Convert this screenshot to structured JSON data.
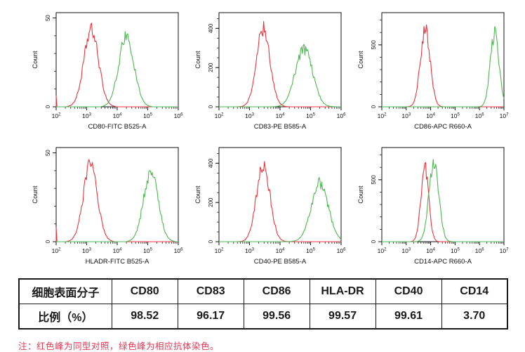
{
  "page": {
    "background": "#ffffff"
  },
  "legend_colors": {
    "isotype_red": "#e8353d",
    "antibody_green": "#4db84f"
  },
  "chart_data": [
    {
      "type": "histogram",
      "marker": "CD80",
      "xlabel": "CD80-FITC B525-A",
      "ylabel": "Count",
      "x_log_range": [
        2,
        6
      ],
      "y_max": 53,
      "y_major_ticks": [
        0,
        50
      ],
      "y_minor_step": 10,
      "series": [
        {
          "name": "isotype-control",
          "color": "#e8353d",
          "peak_log10": 3.15,
          "sigma_log10": 0.24,
          "peak_count": 43,
          "edge_spike_count": 6
        },
        {
          "name": "antibody-stain",
          "color": "#4db84f",
          "peak_log10": 4.3,
          "sigma_log10": 0.25,
          "peak_count": 40
        }
      ]
    },
    {
      "type": "histogram",
      "marker": "CD83",
      "xlabel": "CD83-PE B585-A",
      "ylabel": "Count",
      "x_log_range": [
        2,
        6
      ],
      "y_max": 480,
      "y_major_ticks": [
        0,
        200,
        400
      ],
      "y_minor_step": 50,
      "series": [
        {
          "name": "isotype-control",
          "color": "#e8353d",
          "peak_log10": 3.45,
          "sigma_log10": 0.22,
          "peak_count": 400
        },
        {
          "name": "antibody-stain",
          "color": "#4db84f",
          "peak_log10": 4.78,
          "sigma_log10": 0.28,
          "peak_count": 295
        }
      ]
    },
    {
      "type": "histogram",
      "marker": "CD86",
      "xlabel": "CD86-APC R660-A",
      "ylabel": "Count",
      "x_log_range": [
        2,
        7
      ],
      "y_max": 760,
      "y_major_ticks": [
        0,
        500
      ],
      "y_minor_step": 100,
      "series": [
        {
          "name": "isotype-control",
          "color": "#e8353d",
          "peak_log10": 3.78,
          "sigma_log10": 0.2,
          "peak_count": 620
        },
        {
          "name": "antibody-stain",
          "color": "#4db84f",
          "peak_log10": 6.62,
          "sigma_log10": 0.18,
          "peak_count": 590
        }
      ]
    },
    {
      "type": "histogram",
      "marker": "HLA-DR",
      "xlabel": "HLADR-FITC B525-A",
      "ylabel": "Count",
      "x_log_range": [
        2,
        6
      ],
      "y_max": 53,
      "y_major_ticks": [
        0,
        50
      ],
      "y_minor_step": 10,
      "series": [
        {
          "name": "isotype-control",
          "color": "#e8353d",
          "peak_log10": 3.12,
          "sigma_log10": 0.23,
          "peak_count": 43,
          "edge_spike_count": 8
        },
        {
          "name": "antibody-stain",
          "color": "#4db84f",
          "peak_log10": 5.1,
          "sigma_log10": 0.24,
          "peak_count": 39
        }
      ]
    },
    {
      "type": "histogram",
      "marker": "CD40",
      "xlabel": "CD40-PE B585-A",
      "ylabel": "Count",
      "x_log_range": [
        2,
        6
      ],
      "y_max": 480,
      "y_major_ticks": [
        0,
        200,
        400
      ],
      "y_minor_step": 50,
      "series": [
        {
          "name": "isotype-control",
          "color": "#e8353d",
          "peak_log10": 3.45,
          "sigma_log10": 0.22,
          "peak_count": 395
        },
        {
          "name": "antibody-stain",
          "color": "#4db84f",
          "peak_log10": 5.3,
          "sigma_log10": 0.28,
          "peak_count": 300
        }
      ]
    },
    {
      "type": "histogram",
      "marker": "CD14",
      "xlabel": "CD14-APC R660-A",
      "ylabel": "Count",
      "x_log_range": [
        2,
        7
      ],
      "y_max": 760,
      "y_major_ticks": [
        0,
        500
      ],
      "y_minor_step": 100,
      "series": [
        {
          "name": "isotype-control",
          "color": "#e8353d",
          "peak_log10": 3.76,
          "sigma_log10": 0.16,
          "peak_count": 600
        },
        {
          "name": "antibody-stain",
          "color": "#4db84f",
          "peak_log10": 4.13,
          "sigma_log10": 0.2,
          "peak_count": 645
        }
      ]
    }
  ],
  "table": {
    "header_label": "细胞表面分子",
    "row_label": "比例（%）",
    "columns": [
      "CD80",
      "CD83",
      "CD86",
      "HLA-DR",
      "CD40",
      "CD14"
    ],
    "values": [
      "98.52",
      "96.17",
      "99.56",
      "99.57",
      "99.61",
      "3.70"
    ]
  },
  "note": {
    "text": "注：红色峰为同型对照，绿色峰为相应抗体染色。",
    "color": "#e73752"
  }
}
